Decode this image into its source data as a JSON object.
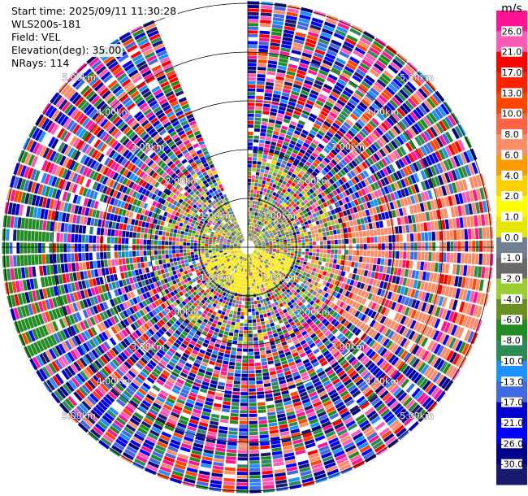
{
  "chart_data": {
    "type": "polar-ppi",
    "header": {
      "start_time": "Start time: 2025/09/11 11:30:28",
      "instrument": "WLS200s-181",
      "field": "Field: VEL",
      "elevation": "Elevation(deg): 35.00",
      "nrays": "NRays: 114"
    },
    "range_rings_km": [
      1.0,
      2.0,
      3.0,
      4.0,
      5.0
    ],
    "ring_label_texts": [
      "1.00km",
      "2.00km",
      "3.00km",
      "4.00km",
      "5.00km"
    ],
    "max_range_km": 5.05,
    "gap_azimuth_deg": [
      337,
      360
    ],
    "colorbar": {
      "title": "m/s",
      "ticks": [
        "26.0",
        "21.0",
        "17.0",
        "13.0",
        "10.0",
        "8.0",
        "6.0",
        "4.0",
        "2.0",
        "1.0",
        "0.0",
        "-1.0",
        "-2.0",
        "-4.0",
        "-6.0",
        "-8.0",
        "-10.0",
        "-13.0",
        "-17.0",
        "-21.0",
        "-26.0",
        "-30.0"
      ],
      "colors": [
        "#ff1493",
        "#ff5ab4",
        "#ff0000",
        "#ff2400",
        "#ff4500",
        "#ff6347",
        "#ff8c69",
        "#ff9900",
        "#ffd000",
        "#ffff00",
        "#e6e600",
        "#708090",
        "#696969",
        "#9acd32",
        "#6b8e23",
        "#228b22",
        "#2e8b57",
        "#1e90ff",
        "#4169e1",
        "#0000cd",
        "#0000ff",
        "#00008b",
        "#191970"
      ]
    }
  }
}
